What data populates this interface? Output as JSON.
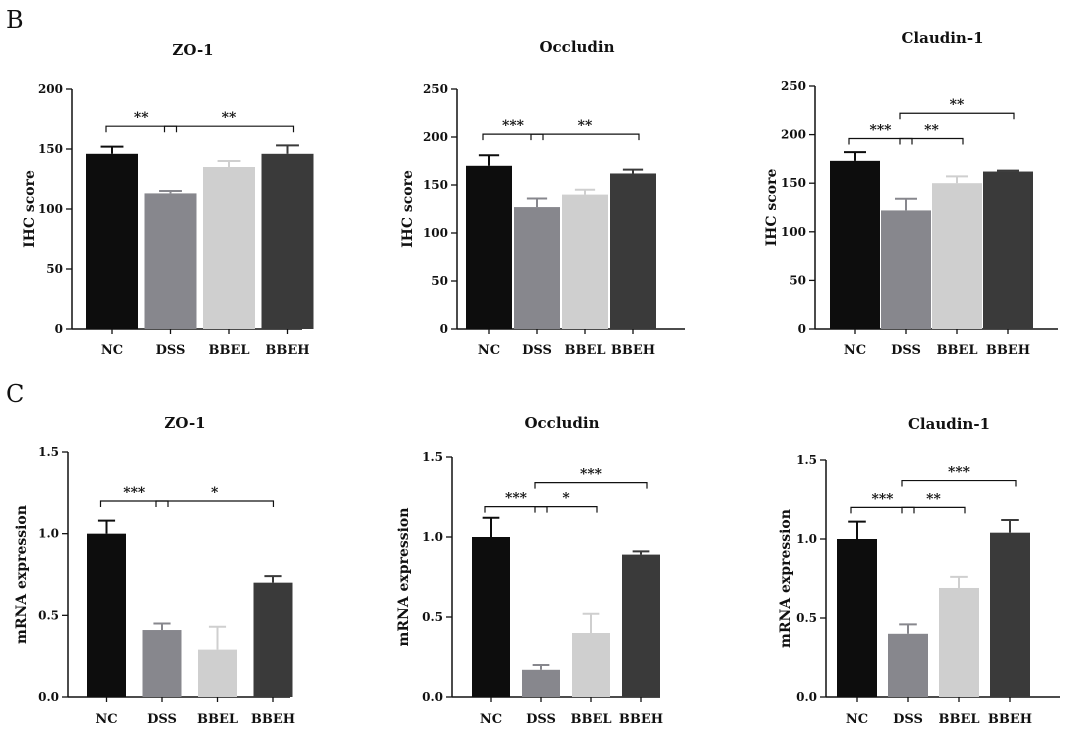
{
  "panels": [
    {
      "letter": "B"
    },
    {
      "letter": "C"
    }
  ],
  "colors": {
    "NC": "#0d0d0d",
    "DSS": "#87878d",
    "BBEL": "#cfcfcf",
    "BBEH": "#3a3a3a"
  },
  "chart_data": [
    {
      "type": "bar",
      "title": "ZO-1",
      "ylabel": "IHC score",
      "xlabel": "",
      "categories": [
        "NC",
        "DSS",
        "BBEL",
        "BBEH"
      ],
      "values": [
        146,
        113,
        135,
        146
      ],
      "errors": [
        6,
        2,
        5,
        7
      ],
      "ylim": [
        0,
        200
      ],
      "yticks": [
        0,
        50,
        100,
        150,
        200
      ],
      "ytick_labels": [
        "0",
        "50",
        "100",
        "150",
        "200"
      ],
      "significance": [
        {
          "from": 0,
          "to": 1,
          "label": "**",
          "y": 169
        },
        {
          "from": 1,
          "to": 3,
          "label": "**",
          "y": 169
        }
      ]
    },
    {
      "type": "bar",
      "title": "Occludin",
      "ylabel": "IHC score",
      "xlabel": "",
      "categories": [
        "NC",
        "DSS",
        "BBEL",
        "BBEH"
      ],
      "values": [
        170,
        127,
        140,
        162
      ],
      "errors": [
        11,
        9,
        5,
        4
      ],
      "ylim": [
        0,
        250
      ],
      "yticks": [
        0,
        50,
        100,
        150,
        200,
        250
      ],
      "ytick_labels": [
        "0",
        "50",
        "100",
        "150",
        "200",
        "250"
      ],
      "significance": [
        {
          "from": 0,
          "to": 1,
          "label": "***",
          "y": 203
        },
        {
          "from": 1,
          "to": 3,
          "label": "**",
          "y": 203
        }
      ]
    },
    {
      "type": "bar",
      "title": "Claudin-1",
      "ylabel": "IHC score",
      "xlabel": "",
      "categories": [
        "NC",
        "DSS",
        "BBEL",
        "BBEH"
      ],
      "values": [
        173,
        122,
        150,
        162
      ],
      "errors": [
        9,
        12,
        7,
        1
      ],
      "ylim": [
        0,
        250
      ],
      "yticks": [
        0,
        50,
        100,
        150,
        200,
        250
      ],
      "ytick_labels": [
        "0",
        "50",
        "100",
        "150",
        "200",
        "250"
      ],
      "significance": [
        {
          "from": 0,
          "to": 1,
          "label": "***",
          "y": 196
        },
        {
          "from": 1,
          "to": 2,
          "label": "**",
          "y": 196
        },
        {
          "from": 1,
          "to": 3,
          "label": "**",
          "y": 222
        }
      ]
    },
    {
      "type": "bar",
      "title": "ZO-1",
      "ylabel": "mRNA expression",
      "xlabel": "",
      "categories": [
        "NC",
        "DSS",
        "BBEL",
        "BBEH"
      ],
      "values": [
        1.0,
        0.41,
        0.29,
        0.7
      ],
      "errors": [
        0.08,
        0.04,
        0.14,
        0.04
      ],
      "ylim": [
        0,
        1.5
      ],
      "yticks": [
        0,
        0.5,
        1.0,
        1.5
      ],
      "ytick_labels": [
        "0.0",
        "0.5",
        "1.0",
        "1.5"
      ],
      "significance": [
        {
          "from": 0,
          "to": 1,
          "label": "***",
          "y": 1.2
        },
        {
          "from": 1,
          "to": 2.9,
          "label": "*",
          "y": 1.2
        }
      ]
    },
    {
      "type": "bar",
      "title": "Occludin",
      "ylabel": "mRNA expression",
      "xlabel": "",
      "categories": [
        "NC",
        "DSS",
        "BBEL",
        "BBEH"
      ],
      "values": [
        1.0,
        0.17,
        0.4,
        0.89
      ],
      "errors": [
        0.12,
        0.03,
        0.12,
        0.02
      ],
      "ylim": [
        0,
        1.5
      ],
      "yticks": [
        0,
        0.5,
        1.0,
        1.5
      ],
      "ytick_labels": [
        "0.0",
        "0.5",
        "1.0",
        "1.5"
      ],
      "significance": [
        {
          "from": 0,
          "to": 1,
          "label": "***",
          "y": 1.19
        },
        {
          "from": 1,
          "to": 2,
          "label": "*",
          "y": 1.19
        },
        {
          "from": 1,
          "to": 3,
          "label": "***",
          "y": 1.34
        }
      ]
    },
    {
      "type": "bar",
      "title": "Claudin-1",
      "ylabel": "mRNA expression",
      "xlabel": "",
      "categories": [
        "NC",
        "DSS",
        "BBEL",
        "BBEH"
      ],
      "values": [
        1.0,
        0.4,
        0.69,
        1.04
      ],
      "errors": [
        0.11,
        0.06,
        0.07,
        0.08
      ],
      "ylim": [
        0,
        1.5
      ],
      "yticks": [
        0,
        0.5,
        1.0,
        1.5
      ],
      "ytick_labels": [
        "0.0",
        "0.5",
        "1.0",
        "1.5"
      ],
      "significance": [
        {
          "from": 0,
          "to": 1,
          "label": "***",
          "y": 1.2
        },
        {
          "from": 1,
          "to": 2,
          "label": "**",
          "y": 1.2
        },
        {
          "from": 1,
          "to": 3,
          "label": "***",
          "y": 1.37
        }
      ]
    }
  ]
}
